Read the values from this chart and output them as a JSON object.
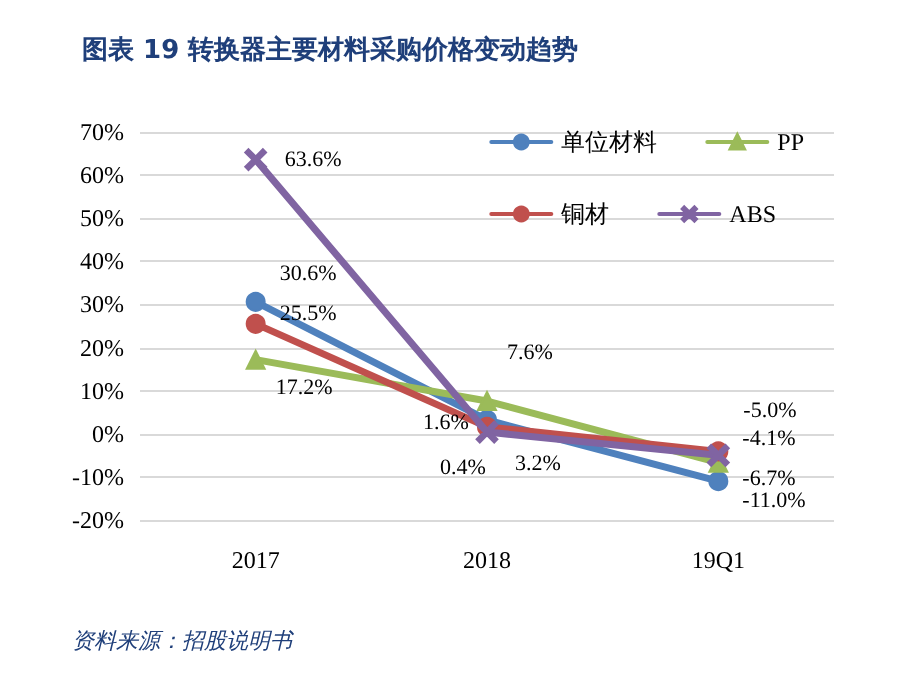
{
  "chart_data": {
    "type": "line",
    "title": "图表 19 转换器主要材料采购价格变动趋势",
    "annotations": [
      "资料来源：招股说明书"
    ],
    "categories": [
      "2017",
      "2018",
      "19Q1"
    ],
    "series": [
      {
        "name": "单位材料",
        "color": "#4f81bd",
        "marker": "circle",
        "values": [
          30.6,
          3.2,
          -11.0
        ],
        "value_labels": [
          "30.6%",
          "3.2%",
          "-11.0%"
        ]
      },
      {
        "name": "PP",
        "color": "#9bbb59",
        "marker": "triangle",
        "values": [
          17.2,
          7.6,
          -6.7
        ],
        "value_labels": [
          "17.2%",
          "7.6%",
          "-6.7%"
        ]
      },
      {
        "name": "铜材",
        "color": "#c0504d",
        "marker": "circle",
        "values": [
          25.5,
          1.6,
          -4.1
        ],
        "value_labels": [
          "25.5%",
          "1.6%",
          "-4.1%"
        ]
      },
      {
        "name": "ABS",
        "color": "#8064a2",
        "marker": "cross",
        "values": [
          63.6,
          0.4,
          -5.0
        ],
        "value_labels": [
          "63.6%",
          "0.4%",
          "-5.0%"
        ]
      }
    ],
    "ylim": [
      -20,
      70
    ],
    "yticks": [
      {
        "value": -20,
        "label": "-20%"
      },
      {
        "value": -10,
        "label": "-10%"
      },
      {
        "value": 0,
        "label": "0%"
      },
      {
        "value": 10,
        "label": "10%"
      },
      {
        "value": 20,
        "label": "20%"
      },
      {
        "value": 30,
        "label": "30%"
      },
      {
        "value": 40,
        "label": "40%"
      },
      {
        "value": 50,
        "label": "50%"
      },
      {
        "value": 60,
        "label": "60%"
      },
      {
        "value": 70,
        "label": "70%"
      }
    ],
    "grid": "y",
    "legend": "top right",
    "line_style": "solid"
  }
}
